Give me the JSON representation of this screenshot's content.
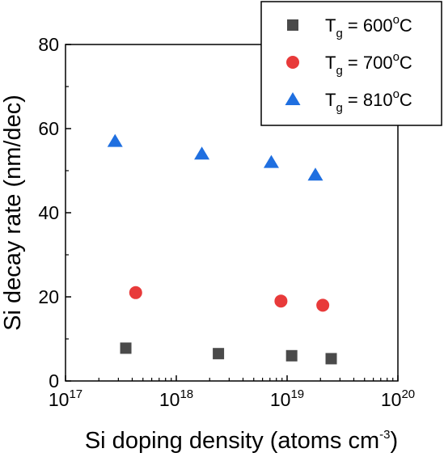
{
  "chart_data": {
    "type": "scatter",
    "xlabel_main": "Si doping density (atoms cm",
    "xlabel_sup": "-3",
    "xlabel_end": ")",
    "ylabel": "Si decay rate (nm/dec)",
    "x_scale": "log",
    "xlim": [
      1e+17,
      1e+20
    ],
    "ylim": [
      0,
      80
    ],
    "x_ticks": [
      {
        "value": 1e+17,
        "base": "10",
        "exp": "17"
      },
      {
        "value": 1e+18,
        "base": "10",
        "exp": "18"
      },
      {
        "value": 1e+19,
        "base": "10",
        "exp": "19"
      },
      {
        "value": 1e+20,
        "base": "10",
        "exp": "20"
      }
    ],
    "y_ticks": [
      0,
      20,
      40,
      60,
      80
    ],
    "grid": false,
    "legend_position": "top-right",
    "series": [
      {
        "label_prefix": "T",
        "label_sub": "g",
        "label_value": " = 600",
        "label_sup": "o",
        "label_unit": "C",
        "marker": "square",
        "color": "#4a4a4a",
        "points": [
          {
            "x": 3.5e+17,
            "y": 7.8
          },
          {
            "x": 2.4e+18,
            "y": 6.5
          },
          {
            "x": 1.1e+19,
            "y": 6.0
          },
          {
            "x": 2.5e+19,
            "y": 5.3
          }
        ]
      },
      {
        "label_prefix": "T",
        "label_sub": "g",
        "label_value": " = 700",
        "label_sup": "o",
        "label_unit": "C",
        "marker": "circle",
        "color": "#e83a3a",
        "points": [
          {
            "x": 4.3e+17,
            "y": 21.0
          },
          {
            "x": 8.8e+18,
            "y": 19.0
          },
          {
            "x": 2.1e+19,
            "y": 18.0
          }
        ]
      },
      {
        "label_prefix": "T",
        "label_sub": "g",
        "label_value": " = 810",
        "label_sup": "o",
        "label_unit": "C",
        "marker": "triangle",
        "color": "#1f6fe0",
        "points": [
          {
            "x": 2.8e+17,
            "y": 57.0
          },
          {
            "x": 1.7e+18,
            "y": 54.0
          },
          {
            "x": 7.2e+18,
            "y": 52.0
          },
          {
            "x": 1.8e+19,
            "y": 49.0
          }
        ]
      }
    ]
  }
}
